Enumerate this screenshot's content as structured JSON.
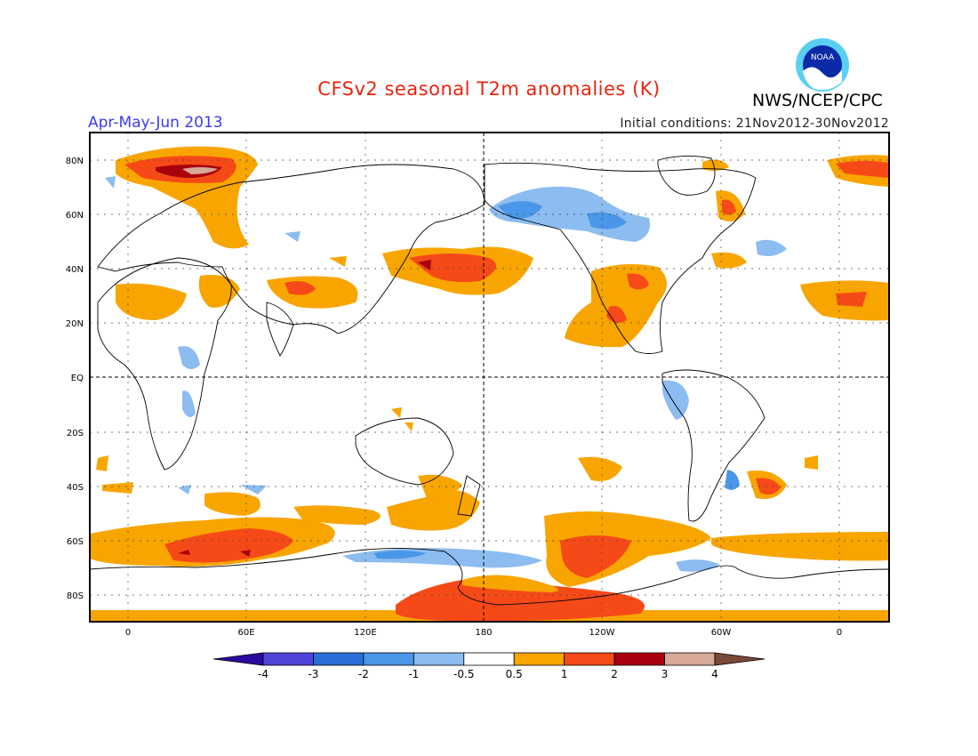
{
  "header": {
    "title": "CFSv2 seasonal T2m anomalies (K)",
    "agency": "NWS/NCEP/CPC",
    "season": "Apr-May-Jun 2013",
    "initial_conditions": "Initial conditions: 21Nov2012-30Nov2012",
    "logo_text": "NOAA"
  },
  "colors": {
    "title": "#e8240f",
    "season": "#3c3cf0",
    "lt_blue": "#8cbcf0",
    "blue": "#4a96e8",
    "orange": "#f8a500",
    "red_orange": "#f54a18",
    "dark_red": "#a8000c",
    "pinkish": "#d8a898"
  },
  "map": {
    "lat_labels": [
      "80N",
      "60N",
      "40N",
      "20N",
      "EQ",
      "20S",
      "40S",
      "60S",
      "80S"
    ],
    "lon_labels": [
      "0",
      "60E",
      "120E",
      "180",
      "120W",
      "60W",
      "0"
    ]
  },
  "legend": {
    "labels": [
      "-4",
      "-3",
      "-2",
      "-1",
      "-0.5",
      "0.5",
      "1",
      "2",
      "3",
      "4"
    ],
    "colors": [
      "#2a0aa0",
      "#5044d8",
      "#2a6ed8",
      "#4a96e8",
      "#8cbcf0",
      "#ffffff",
      "#f8a500",
      "#f54a18",
      "#a8000c",
      "#d8a898",
      "#7a4a38"
    ]
  }
}
